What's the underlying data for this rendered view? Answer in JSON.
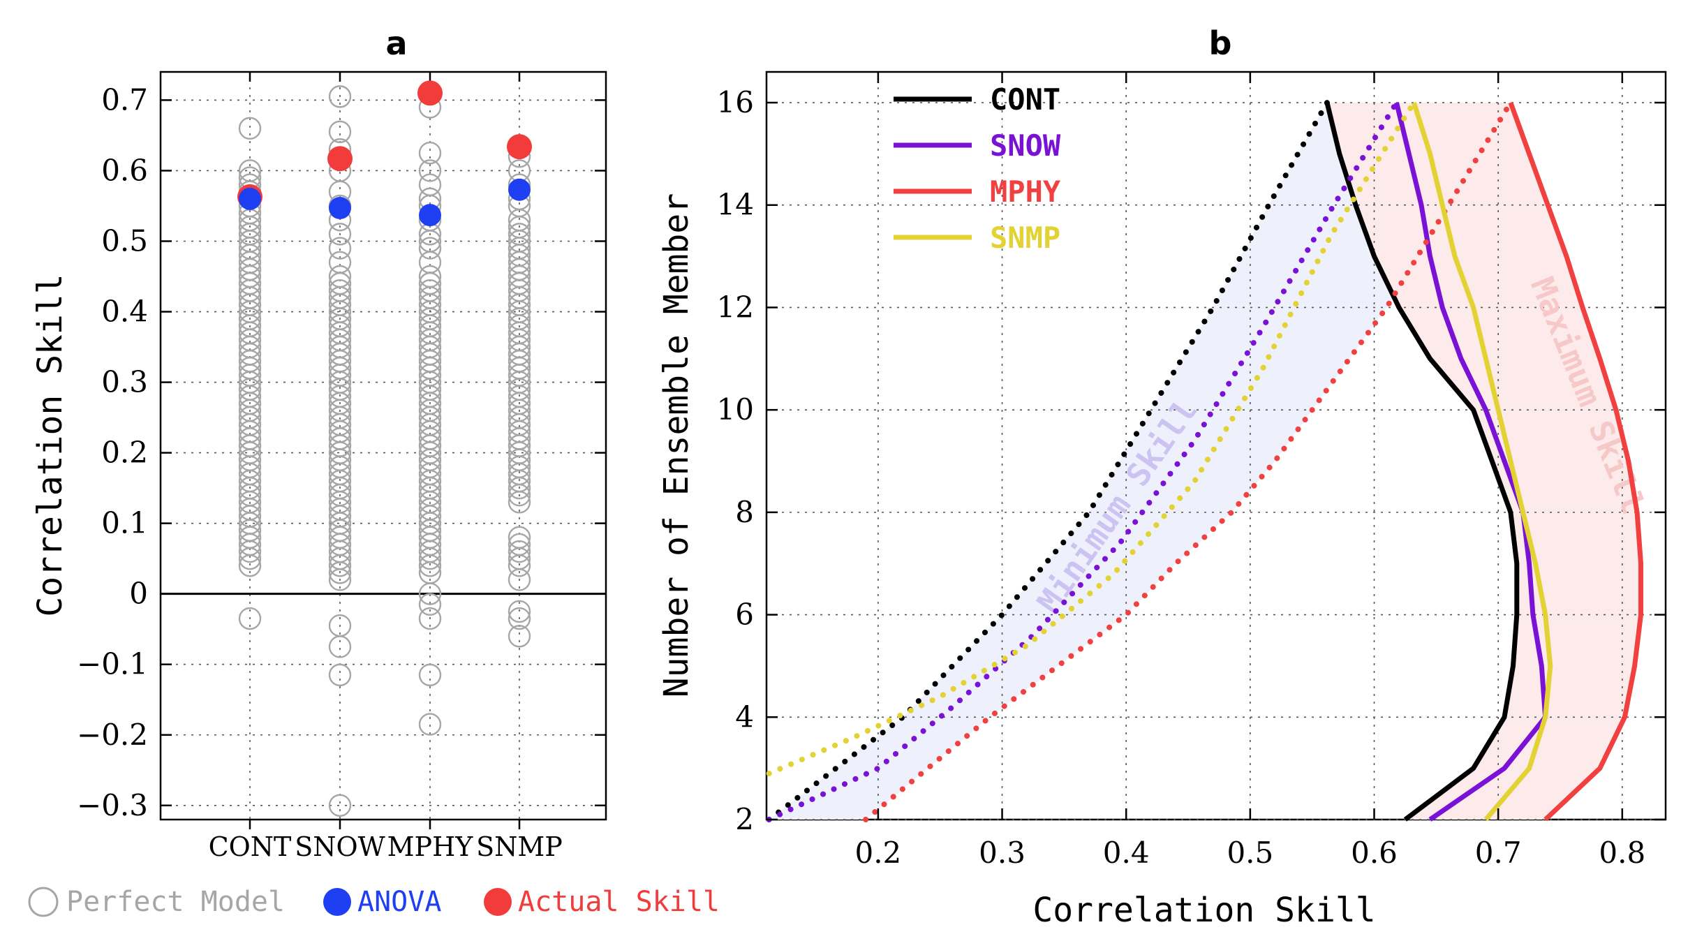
{
  "figure": {
    "panel_a_title": "a",
    "panel_b_title": "b"
  },
  "colors": {
    "perfect": "#a6a6a6",
    "anova": "#1f3ff2",
    "actual": "#f23b3b",
    "CONT": "#000000",
    "SNOW": "#7a12d6",
    "MPHY": "#f04040",
    "SNMP": "#e2d233",
    "min_band": "#eef0fb",
    "max_band": "#fdeaea",
    "min_label": "#cdc3f2",
    "max_label": "#f7c8c8"
  },
  "chart_data": [
    {
      "type": "scatter",
      "title": "a",
      "xlabel": "",
      "ylabel": "Correlation Skill",
      "categories": [
        "CONT",
        "SNOW",
        "MPHY",
        "SNMP"
      ],
      "ylim": [
        -0.32,
        0.74
      ],
      "yticks": [
        -0.3,
        -0.2,
        -0.1,
        0,
        0.1,
        0.2,
        0.3,
        0.4,
        0.5,
        0.6,
        0.7
      ],
      "ytick_labels": [
        "−0.3",
        "−0.2",
        "−0.1",
        "0",
        "0.1",
        "0.2",
        "0.3",
        "0.4",
        "0.5",
        "0.6",
        "0.7"
      ],
      "grid": true,
      "legend": [
        {
          "key": "perfect",
          "label": "Perfect Model"
        },
        {
          "key": "anova",
          "label": "ANOVA"
        },
        {
          "key": "actual",
          "label": "Actual Skill"
        }
      ],
      "legend_position": "bottom",
      "perfect_model": {
        "CONT": [
          0.66,
          0.6,
          0.59,
          0.58,
          0.57,
          0.55,
          0.54,
          0.53,
          0.52,
          0.51,
          0.5,
          0.49,
          0.48,
          0.47,
          0.46,
          0.45,
          0.44,
          0.43,
          0.42,
          0.41,
          0.4,
          0.39,
          0.38,
          0.37,
          0.36,
          0.35,
          0.34,
          0.33,
          0.32,
          0.31,
          0.3,
          0.29,
          0.28,
          0.27,
          0.26,
          0.25,
          0.24,
          0.23,
          0.22,
          0.21,
          0.2,
          0.19,
          0.18,
          0.17,
          0.16,
          0.15,
          0.14,
          0.13,
          0.12,
          0.11,
          0.1,
          0.09,
          0.08,
          0.07,
          0.06,
          0.05,
          0.04,
          -0.035
        ],
        "SNOW": [
          0.705,
          0.655,
          0.63,
          0.6,
          0.57,
          0.55,
          0.53,
          0.51,
          0.49,
          0.47,
          0.45,
          0.44,
          0.43,
          0.42,
          0.41,
          0.4,
          0.39,
          0.38,
          0.37,
          0.36,
          0.35,
          0.34,
          0.33,
          0.32,
          0.31,
          0.3,
          0.29,
          0.28,
          0.27,
          0.26,
          0.25,
          0.24,
          0.23,
          0.22,
          0.21,
          0.2,
          0.19,
          0.18,
          0.17,
          0.16,
          0.15,
          0.14,
          0.13,
          0.12,
          0.11,
          0.1,
          0.09,
          0.08,
          0.07,
          0.06,
          0.05,
          0.04,
          0.03,
          0.02,
          -0.045,
          -0.075,
          -0.115,
          -0.3
        ],
        "MPHY": [
          0.69,
          0.625,
          0.6,
          0.58,
          0.56,
          0.55,
          0.53,
          0.51,
          0.5,
          0.49,
          0.47,
          0.45,
          0.44,
          0.43,
          0.42,
          0.41,
          0.4,
          0.39,
          0.38,
          0.37,
          0.36,
          0.35,
          0.34,
          0.33,
          0.32,
          0.31,
          0.3,
          0.29,
          0.28,
          0.27,
          0.26,
          0.25,
          0.24,
          0.23,
          0.22,
          0.21,
          0.2,
          0.19,
          0.18,
          0.17,
          0.16,
          0.15,
          0.14,
          0.13,
          0.12,
          0.11,
          0.1,
          0.09,
          0.08,
          0.07,
          0.06,
          0.05,
          0.04,
          0.03,
          0.0,
          -0.015,
          -0.035,
          -0.115,
          -0.185
        ],
        "SNMP": [
          0.62,
          0.6,
          0.58,
          0.56,
          0.55,
          0.53,
          0.52,
          0.51,
          0.5,
          0.49,
          0.48,
          0.47,
          0.46,
          0.45,
          0.44,
          0.43,
          0.42,
          0.41,
          0.4,
          0.39,
          0.38,
          0.37,
          0.36,
          0.35,
          0.34,
          0.33,
          0.32,
          0.31,
          0.3,
          0.29,
          0.28,
          0.27,
          0.26,
          0.25,
          0.24,
          0.23,
          0.22,
          0.21,
          0.2,
          0.19,
          0.18,
          0.17,
          0.16,
          0.15,
          0.14,
          0.13,
          0.08,
          0.07,
          0.06,
          0.05,
          0.04,
          0.02,
          -0.025,
          -0.035,
          -0.06
        ]
      },
      "anova": {
        "CONT": 0.56,
        "SNOW": 0.547,
        "MPHY": 0.537,
        "SNMP": 0.573
      },
      "actual_skill": {
        "CONT": 0.563,
        "SNOW": 0.617,
        "MPHY": 0.71,
        "SNMP": 0.634
      }
    },
    {
      "type": "line",
      "title": "b",
      "xlabel": "Correlation Skill",
      "ylabel": "Number of Ensemble Member",
      "xlim": [
        0.11,
        0.835
      ],
      "ylim": [
        2,
        16.6
      ],
      "xticks": [
        0.2,
        0.3,
        0.4,
        0.5,
        0.6,
        0.7,
        0.8
      ],
      "xtick_labels": [
        "0.2",
        "0.3",
        "0.4",
        "0.5",
        "0.6",
        "0.7",
        "0.8"
      ],
      "yticks": [
        2,
        4,
        6,
        8,
        10,
        12,
        14,
        16
      ],
      "ytick_labels": [
        "2",
        "4",
        "6",
        "8",
        "10",
        "12",
        "14",
        "16"
      ],
      "grid": true,
      "legend_position": "top-left",
      "band_labels": {
        "minimum": "Minimum Skill",
        "maximum": "Maximum Skill"
      },
      "series": [
        {
          "name": "CONT",
          "max": [
            [
              0.625,
              2
            ],
            [
              0.68,
              3
            ],
            [
              0.705,
              4
            ],
            [
              0.712,
              5
            ],
            [
              0.715,
              6
            ],
            [
              0.715,
              7
            ],
            [
              0.71,
              8
            ],
            [
              0.695,
              9
            ],
            [
              0.68,
              10
            ],
            [
              0.645,
              11
            ],
            [
              0.62,
              12
            ],
            [
              0.6,
              13
            ],
            [
              0.585,
              14
            ],
            [
              0.572,
              15
            ],
            [
              0.562,
              16
            ]
          ],
          "min": [
            [
              0.112,
              2
            ],
            [
              0.22,
              4
            ],
            [
              0.3,
              6
            ],
            [
              0.37,
              8
            ],
            [
              0.42,
              10
            ],
            [
              0.47,
              12
            ],
            [
              0.515,
              14
            ],
            [
              0.562,
              16
            ]
          ]
        },
        {
          "name": "SNOW",
          "max": [
            [
              0.645,
              2
            ],
            [
              0.705,
              3
            ],
            [
              0.738,
              4
            ],
            [
              0.735,
              5
            ],
            [
              0.728,
              6
            ],
            [
              0.725,
              7
            ],
            [
              0.72,
              8
            ],
            [
              0.705,
              9
            ],
            [
              0.69,
              10
            ],
            [
              0.67,
              11
            ],
            [
              0.655,
              12
            ],
            [
              0.645,
              13
            ],
            [
              0.638,
              14
            ],
            [
              0.628,
              15
            ],
            [
              0.618,
              16
            ]
          ],
          "min": [
            [
              0.112,
              2
            ],
            [
              0.2,
              3
            ],
            [
              0.26,
              4.2
            ],
            [
              0.325,
              5.6
            ],
            [
              0.395,
              7.4
            ],
            [
              0.455,
              9.4
            ],
            [
              0.51,
              11.6
            ],
            [
              0.565,
              13.9
            ],
            [
              0.618,
              16
            ]
          ]
        },
        {
          "name": "MPHY",
          "max": [
            [
              0.738,
              2
            ],
            [
              0.782,
              3
            ],
            [
              0.802,
              4
            ],
            [
              0.81,
              5
            ],
            [
              0.815,
              6
            ],
            [
              0.815,
              7
            ],
            [
              0.812,
              8
            ],
            [
              0.805,
              9
            ],
            [
              0.795,
              10
            ],
            [
              0.782,
              11
            ],
            [
              0.768,
              12
            ],
            [
              0.755,
              13
            ],
            [
              0.74,
              14
            ],
            [
              0.725,
              15
            ],
            [
              0.71,
              16
            ]
          ],
          "min": [
            [
              0.19,
              2
            ],
            [
              0.24,
              3
            ],
            [
              0.29,
              4
            ],
            [
              0.345,
              5
            ],
            [
              0.4,
              6
            ],
            [
              0.44,
              7
            ],
            [
              0.485,
              8
            ],
            [
              0.52,
              9
            ],
            [
              0.55,
              10
            ],
            [
              0.58,
              11
            ],
            [
              0.61,
              12
            ],
            [
              0.635,
              13
            ],
            [
              0.66,
              14
            ],
            [
              0.685,
              15
            ],
            [
              0.71,
              16
            ]
          ]
        },
        {
          "name": "SNMP",
          "max": [
            [
              0.69,
              2
            ],
            [
              0.725,
              3
            ],
            [
              0.738,
              4
            ],
            [
              0.742,
              5
            ],
            [
              0.738,
              6
            ],
            [
              0.73,
              7
            ],
            [
              0.72,
              8
            ],
            [
              0.71,
              9
            ],
            [
              0.7,
              10
            ],
            [
              0.69,
              11
            ],
            [
              0.68,
              12
            ],
            [
              0.665,
              13
            ],
            [
              0.655,
              14
            ],
            [
              0.645,
              15
            ],
            [
              0.632,
              16
            ]
          ],
          "min": [
            [
              0.112,
              2.9
            ],
            [
              0.18,
              3.6
            ],
            [
              0.25,
              4.4
            ],
            [
              0.32,
              5.4
            ],
            [
              0.39,
              6.8
            ],
            [
              0.455,
              8.6
            ],
            [
              0.51,
              10.8
            ],
            [
              0.565,
              13.4
            ],
            [
              0.632,
              16
            ]
          ]
        }
      ]
    }
  ]
}
